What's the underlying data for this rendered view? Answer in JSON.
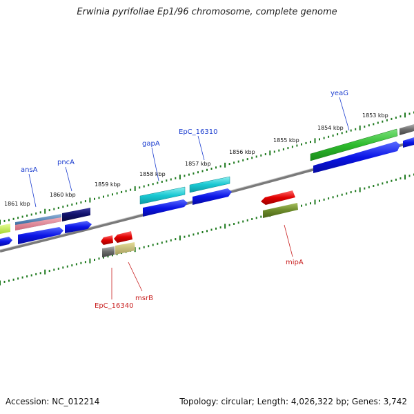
{
  "title": "Erwinia pyrifoliae Ep1/96 chromosome, complete genome",
  "footer": {
    "accession": "Accession: NC_012214",
    "summary": "Topology: circular; Length: 4,026,322 bp; Genes: 3,742"
  },
  "scale_labels": [
    "1853 kbp",
    "1854 kbp",
    "1855 kbp",
    "1856 kbp",
    "1857 kbp",
    "1858 kbp",
    "1859 kbp",
    "1860 kbp",
    "1861 kbp"
  ],
  "genes": [
    {
      "name": "yeaG",
      "color": "#1a3ccf",
      "strand": "forward"
    },
    {
      "name": "EpC_16310",
      "color": "#1a3ccf",
      "strand": "forward"
    },
    {
      "name": "gapA",
      "color": "#1a3ccf",
      "strand": "forward"
    },
    {
      "name": "pncA",
      "color": "#1a3ccf",
      "strand": "forward"
    },
    {
      "name": "ansA",
      "color": "#1a3ccf",
      "strand": "forward"
    },
    {
      "name": "mipA",
      "color": "#c81e1e",
      "strand": "reverse"
    },
    {
      "name": "msrB",
      "color": "#c81e1e",
      "strand": "reverse"
    },
    {
      "name": "EpC_16340",
      "color": "#c81e1e",
      "strand": "reverse"
    }
  ],
  "colors": {
    "forward_cds": "#0a14e6",
    "reverse_cds": "#e00000",
    "backbone": "#8a8a8a",
    "ticks": "#1f7a1f"
  }
}
